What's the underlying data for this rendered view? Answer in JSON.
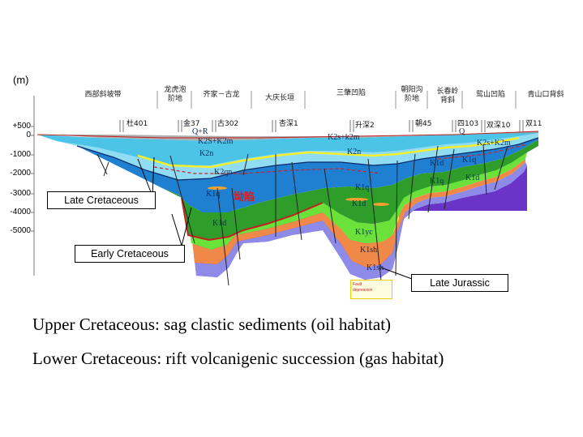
{
  "unit_label": "(m)",
  "depth_ticks": [
    "+500",
    "0",
    "-1000",
    "-2000",
    "-3000",
    "-4000",
    "-5000"
  ],
  "regions": [
    {
      "name": "west-slope",
      "text": "西部斜坡带"
    },
    {
      "name": "longhupao-terrace",
      "text": "龙虎泡\n阶地"
    },
    {
      "name": "qijia-gulong",
      "text": "齐家－古龙"
    },
    {
      "name": "daqing-anticline",
      "text": "大庆长垣"
    },
    {
      "name": "sanzhao-depression",
      "text": "三肇凹陷"
    },
    {
      "name": "chaoyanggou-terrace",
      "text": "朝阳沟\n阶地"
    },
    {
      "name": "changchunling-anticline",
      "text": "长春岭\n背斜"
    },
    {
      "name": "yuanshan-depression",
      "text": "鸳山凹陷"
    },
    {
      "name": "qingshankou-anticline",
      "text": "青山口背斜"
    }
  ],
  "wells": [
    "杜401",
    "金37",
    "古302",
    "杏深1",
    "升深2",
    "朝45",
    "四103",
    "双深10",
    "双11"
  ],
  "unit_labels": {
    "q_r_west": "Q+R",
    "k2s_k2m_west": "K2S+K2m",
    "k2n_west": "K2n",
    "k2qn_west": "K2qn",
    "k1q_west": "K1q",
    "k1d_west": "K1d",
    "k2s_k2m_center": "K2s+k2m",
    "k2n_center": "K2n",
    "k1q_center": "K1q",
    "k1d_center": "K1d",
    "k1yc": "K1yc",
    "k1sh": "K1sh",
    "k1sh_deep": "K1sh",
    "q_east": "Q",
    "k2s_k2m_east": "K2s+K2m",
    "k1d_east1": "K1d",
    "k1q_east1": "K1q",
    "k1q_east2": "K1q",
    "k1d_east2": "K1d"
  },
  "red_label": "坳陷",
  "fault_note": "Fault\ndepression",
  "callouts": {
    "late_cretaceous": "Late Cretaceous",
    "early_cretaceous": "Early Cretaceous",
    "late_jurassic": "Late Jurassic"
  },
  "notes": {
    "upper": "Upper Cretaceous: sag clastic sediments (oil habitat)",
    "lower": "Lower Cretaceous: rift volcanigenic succession (gas habitat)"
  },
  "colors": {
    "quaternary": "#9b9b9b",
    "k2_top": "#4cc4e8",
    "k2_dark": "#1f7fd0",
    "k2_light": "#8fdcf3",
    "k1_green": "#2f9d2a",
    "k1_lime": "#6ae23a",
    "k1_yellow": "#e8e26a",
    "k1_orange": "#f08848",
    "k1_lavender": "#8e8ae8",
    "j3_purple": "#6b34c8",
    "unconformity": "#c42020"
  }
}
